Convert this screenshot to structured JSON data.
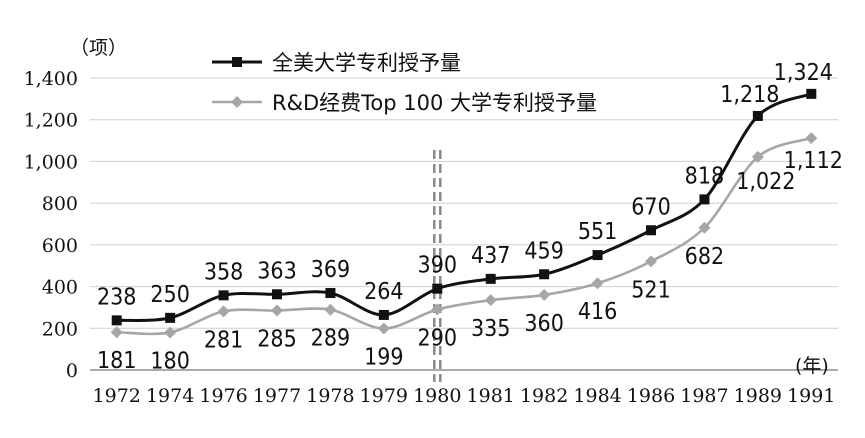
{
  "chart_data": {
    "type": "line",
    "categories": [
      "1972",
      "1974",
      "1976",
      "1977",
      "1978",
      "1979",
      "1980",
      "1981",
      "1982",
      "1984",
      "1986",
      "1987",
      "1989",
      "1991"
    ],
    "series": [
      {
        "name": "全美大学专利授予量",
        "values": [
          238,
          250,
          358,
          363,
          369,
          264,
          390,
          437,
          459,
          551,
          670,
          818,
          1218,
          1324
        ],
        "labels": [
          "238",
          "250",
          "358",
          "363",
          "369",
          "264",
          "390",
          "437",
          "459",
          "551",
          "670",
          "818",
          "1,218",
          "1,324"
        ],
        "color": "#111111",
        "marker": "square"
      },
      {
        "name": "R&D经费Top 100 大学专利授予量",
        "values": [
          181,
          180,
          281,
          285,
          289,
          199,
          290,
          335,
          360,
          416,
          521,
          682,
          1022,
          1112
        ],
        "labels": [
          "181",
          "180",
          "281",
          "285",
          "289",
          "199",
          "290",
          "335",
          "360",
          "416",
          "521",
          "682",
          "1,022",
          "1,112"
        ],
        "color": "#a6a6a6",
        "marker": "diamond"
      }
    ],
    "yticks": [
      "0",
      "200",
      "400",
      "600",
      "800",
      "1,000",
      "1,200",
      "1,400"
    ],
    "ylim": [
      0,
      1400
    ],
    "ylabel": "（项）",
    "xlabel": "(年)",
    "grid": "horizontal",
    "legend_position": "top",
    "marker_year": "1980"
  }
}
